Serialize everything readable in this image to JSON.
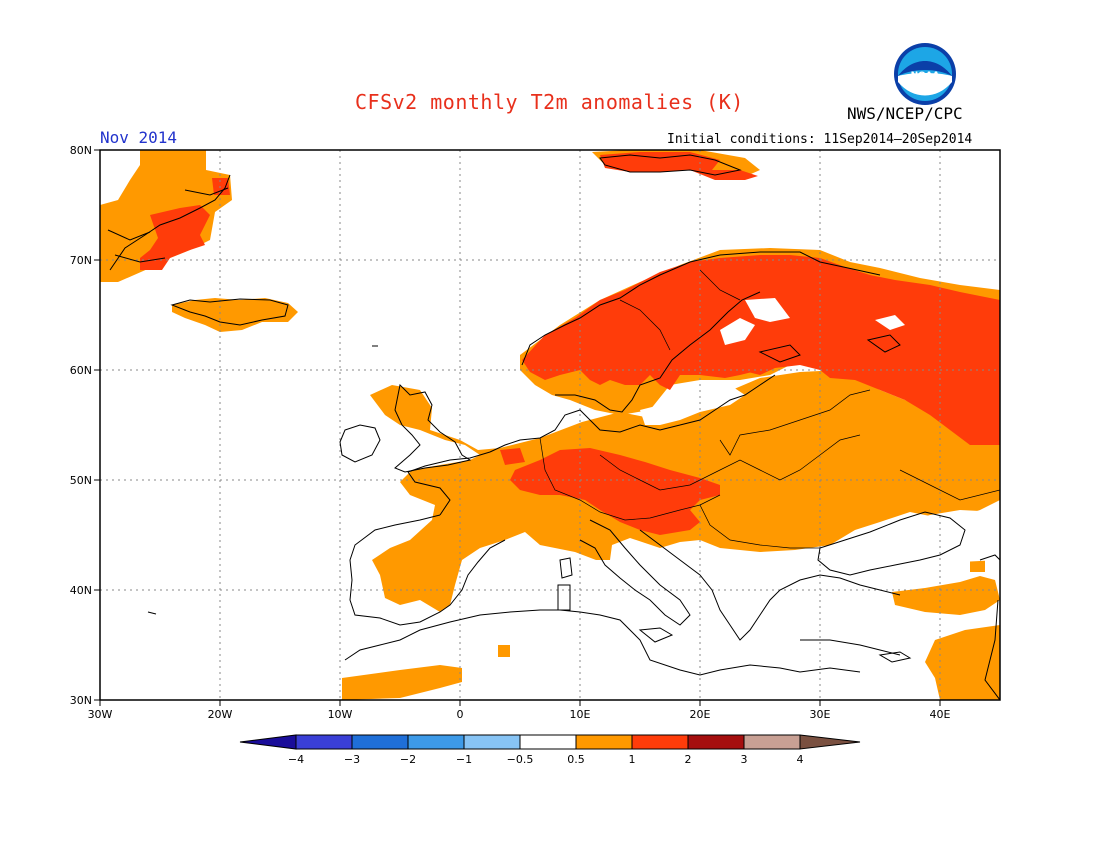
{
  "title": "CFSv2 monthly T2m anomalies (K)",
  "agency": "NWS/NCEP/CPC",
  "logo_text": "NOAA",
  "month": "Nov 2014",
  "initial_conditions": "Initial conditions: 11Sep2014–20Sep2014",
  "map": {
    "lon_range": [
      -30,
      45
    ],
    "lat_range": [
      30,
      80
    ],
    "lon_ticks": [
      "30W",
      "20W",
      "10W",
      "0",
      "10E",
      "20E",
      "30E",
      "40E"
    ],
    "lat_ticks": [
      "80N",
      "70N",
      "60N",
      "50N",
      "40N",
      "30N"
    ],
    "grid": "dotted"
  },
  "colorbar": {
    "labels": [
      "−4",
      "−3",
      "−2",
      "−1",
      "−0.5",
      "0.5",
      "1",
      "2",
      "3",
      "4"
    ],
    "colors": [
      "#1a0d9a",
      "#3a3fd6",
      "#1f6fd8",
      "#3d9ae8",
      "#87c4f5",
      "#ffffff",
      "#ff9900",
      "#ff3c0a",
      "#a50f0f",
      "#c8a094",
      "#7a5040"
    ]
  },
  "anomaly_colors": {
    "0.5-1": "#ff9900",
    "1-2": "#ff3c0a"
  }
}
